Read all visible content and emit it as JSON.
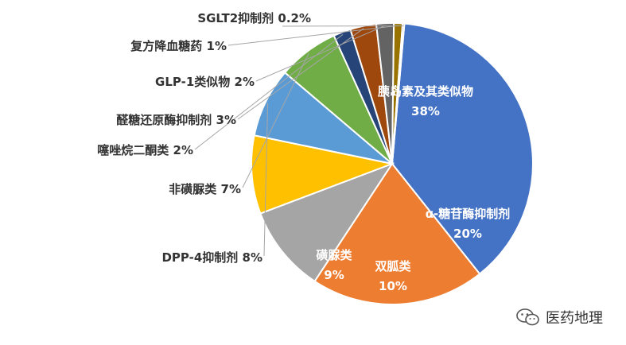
{
  "chart_data": {
    "type": "pie",
    "title": "",
    "slices": [
      {
        "name": "胰岛素及其类似物",
        "label": "38%",
        "value": 38,
        "color": "#4472C4",
        "label_pos": "inside"
      },
      {
        "name": "α-糖苷酶抑制剂",
        "label": "20%",
        "value": 20,
        "color": "#ED7D31",
        "label_pos": "inside"
      },
      {
        "name": "双胍类",
        "label": "10%",
        "value": 10,
        "color": "#A5A5A5",
        "label_pos": "inside"
      },
      {
        "name": "磺脲类",
        "label": "9%",
        "value": 9,
        "color": "#FFC000",
        "label_pos": "inside"
      },
      {
        "name": "DPP-4抑制剂",
        "label": "8%",
        "value": 8,
        "color": "#5B9BD5",
        "label_pos": "outside"
      },
      {
        "name": "非磺脲类",
        "label": "7%",
        "value": 7,
        "color": "#70AD47",
        "label_pos": "outside"
      },
      {
        "name": "噻唑烷二酮类",
        "label": "2%",
        "value": 2,
        "color": "#264478",
        "label_pos": "outside"
      },
      {
        "name": "醛糖还原酶抑制剂",
        "label": "3%",
        "value": 3,
        "color": "#9E480E",
        "label_pos": "outside"
      },
      {
        "name": "GLP-1类似物",
        "label": "2%",
        "value": 2,
        "color": "#636363",
        "label_pos": "outside"
      },
      {
        "name": "复方降血糖药",
        "label": "1%",
        "value": 1,
        "color": "#997300",
        "label_pos": "outside"
      },
      {
        "name": "SGLT2抑制剂",
        "label": "0.2%",
        "value": 0.2,
        "color": "#264478",
        "label_pos": "outside"
      }
    ]
  },
  "watermark": {
    "text": "医药地理",
    "icon": "wechat-icon"
  }
}
